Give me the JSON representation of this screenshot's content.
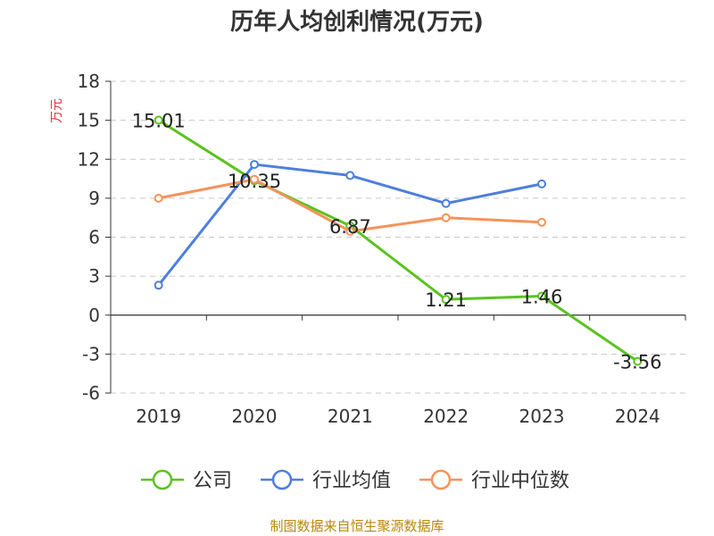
{
  "chart_data": {
    "type": "line",
    "title": "历年人均创利情况(万元)",
    "ylabel": "万元",
    "xlabel": "",
    "categories": [
      "2019",
      "2020",
      "2021",
      "2022",
      "2023",
      "2024"
    ],
    "ylim": [
      -6,
      18
    ],
    "yticks": [
      18,
      15,
      12,
      9,
      6,
      3,
      0,
      -3,
      -6
    ],
    "grid": true,
    "legend_position": "bottom",
    "series": [
      {
        "name": "公司",
        "color": "#5ac31e",
        "values": [
          15.01,
          10.35,
          6.87,
          1.21,
          1.46,
          -3.56
        ],
        "labels": [
          "15.01",
          "10.35",
          "6.87",
          "1.21",
          "1.46",
          "-3.56"
        ]
      },
      {
        "name": "行业均值",
        "color": "#4e7fdb",
        "values": [
          2.3,
          11.6,
          10.75,
          8.6,
          10.1,
          null
        ]
      },
      {
        "name": "行业中位数",
        "color": "#f5935a",
        "values": [
          9.0,
          10.45,
          6.45,
          7.5,
          7.15,
          null
        ]
      }
    ]
  },
  "footer": {
    "source": "制图数据来自恒生聚源数据库"
  }
}
